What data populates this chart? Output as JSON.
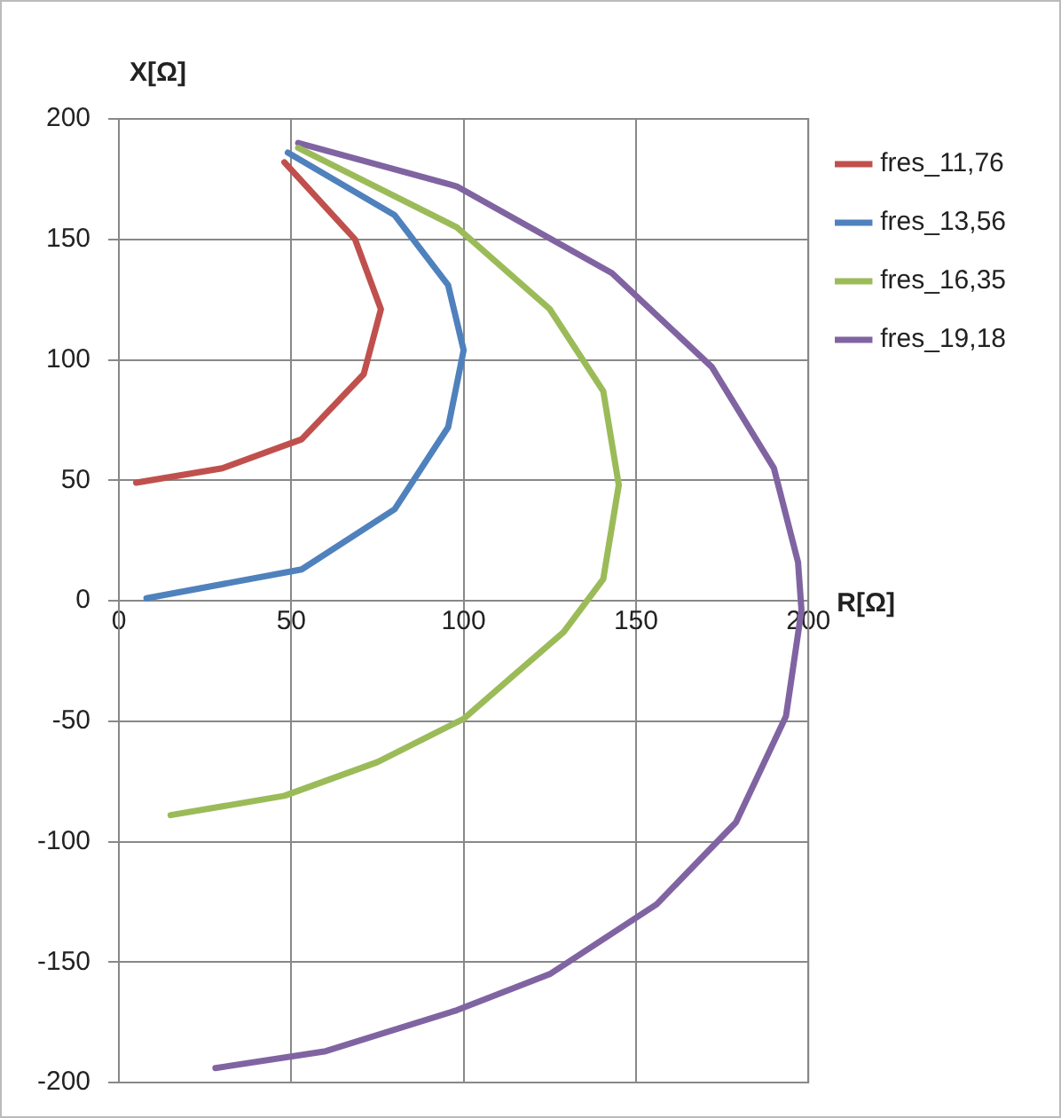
{
  "chart_data": {
    "type": "line",
    "xlabel": "R[Ω]",
    "ylabel": "X[Ω]",
    "xlim": [
      0,
      200
    ],
    "xticks": [
      0,
      50,
      100,
      150,
      200
    ],
    "ylim": [
      -200,
      200
    ],
    "yticks": [
      -200,
      -150,
      -100,
      -50,
      0,
      50,
      100,
      150,
      200
    ],
    "grid": true,
    "legend": "top right",
    "marker": "none",
    "line_style": "solid",
    "series": [
      {
        "name": "fres_11,76",
        "color": "#c0504d",
        "x": [
          48,
          68.5,
          76,
          71,
          53,
          30,
          5
        ],
        "values": [
          182,
          150,
          121,
          94,
          67,
          55,
          49
        ]
      },
      {
        "name": "fres_13,56",
        "color": "#4f81bd",
        "x": [
          49,
          80,
          95.5,
          100,
          95.5,
          80,
          53,
          8
        ],
        "values": [
          186,
          160,
          131,
          104,
          72,
          38,
          13,
          1
        ]
      },
      {
        "name": "fres_16,35",
        "color": "#9bbb59",
        "x": [
          52,
          98,
          125,
          140.5,
          145,
          140.5,
          129,
          100,
          75,
          48,
          15
        ],
        "values": [
          188,
          155,
          121,
          87,
          48,
          9,
          -13,
          -49,
          -67,
          -81,
          -89
        ]
      },
      {
        "name": "fres_19,18",
        "color": "#8064a2",
        "x": [
          52,
          98,
          143,
          172,
          190,
          197,
          198,
          193.5,
          179,
          156,
          125,
          98,
          60,
          28
        ],
        "values": [
          190,
          172,
          136,
          97,
          55,
          16,
          -4,
          -48,
          -92,
          -126,
          -155,
          -170,
          -187,
          -194
        ]
      }
    ]
  }
}
